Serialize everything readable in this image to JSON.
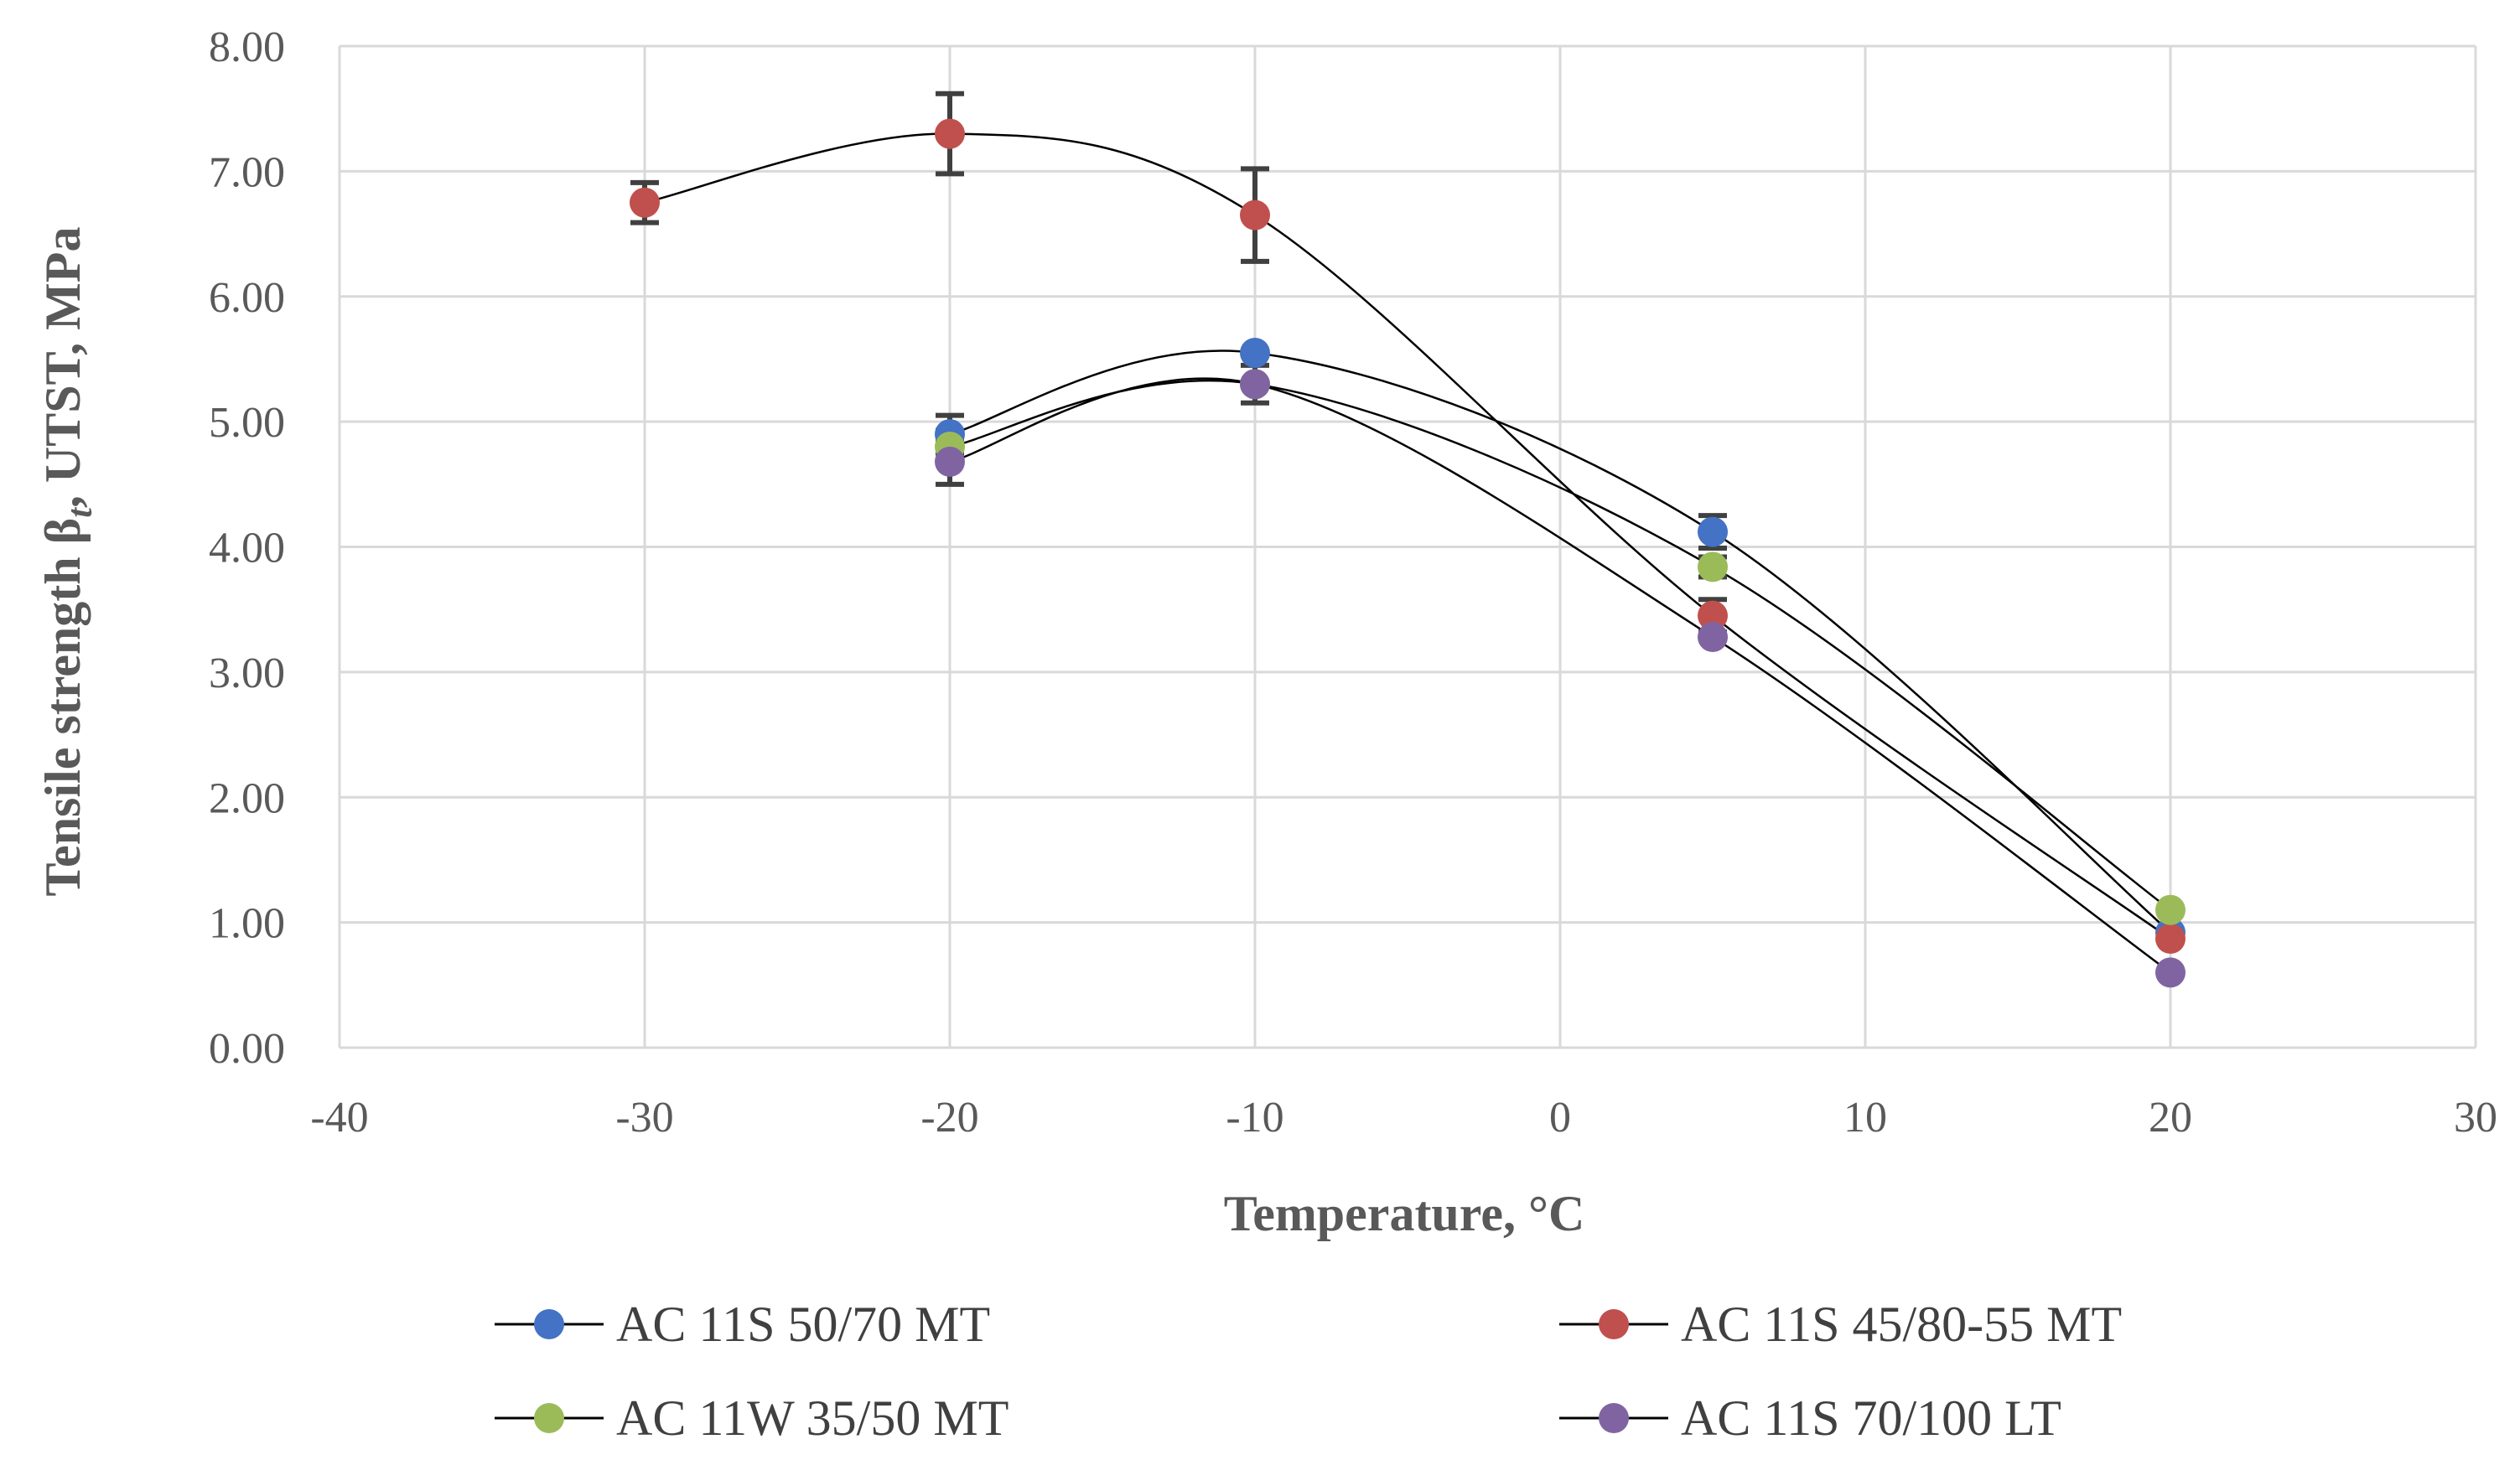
{
  "chart_data": {
    "type": "scatter",
    "title": "",
    "xlabel": "Temperature, °C",
    "ylabel_parts": {
      "before": "Tensile strength β",
      "subscript": "t",
      "after": ", UTST, MPa"
    },
    "xlim": [
      -40,
      30
    ],
    "ylim": [
      0,
      8
    ],
    "x_ticks": [
      -40,
      -30,
      -20,
      -10,
      0,
      10,
      20,
      30
    ],
    "x_tick_labels": [
      "-40",
      "-30",
      "-20",
      "-10",
      "0",
      "10",
      "20",
      "30"
    ],
    "y_ticks": [
      0,
      1,
      2,
      3,
      4,
      5,
      6,
      7,
      8
    ],
    "y_tick_labels": [
      "0.00",
      "1.00",
      "2.00",
      "3.00",
      "4.00",
      "5.00",
      "6.00",
      "7.00",
      "8.00"
    ],
    "grid": true,
    "smooth_lines": true,
    "line_color": "#000000",
    "errorbar_color": "#404040",
    "legend_position": "bottom",
    "series": [
      {
        "name": "AC 11S 50/70 MT",
        "color": "#4472C4",
        "x": [
          -20,
          -10,
          5,
          20
        ],
        "y": [
          4.9,
          5.55,
          4.12,
          0.92
        ],
        "err": [
          0.15,
          0.0,
          0.13,
          0.0
        ]
      },
      {
        "name": "AC 11S 45/80-55 MT",
        "color": "#C0504D",
        "x": [
          -30,
          -20,
          -10,
          5,
          20
        ],
        "y": [
          6.75,
          7.3,
          6.65,
          3.45,
          0.87
        ],
        "err": [
          0.16,
          0.32,
          0.37,
          0.13,
          0.0
        ]
      },
      {
        "name": "AC 11W 35/50 MT",
        "color": "#9BBB59",
        "x": [
          -20,
          -10,
          5,
          20
        ],
        "y": [
          4.8,
          5.3,
          3.84,
          1.1
        ],
        "err": [
          0.13,
          0.0,
          0.08,
          0.0
        ]
      },
      {
        "name": "AC 11S 70/100 LT",
        "color": "#8064A2",
        "x": [
          -20,
          -10,
          5,
          20
        ],
        "y": [
          4.68,
          5.3,
          3.28,
          0.6
        ],
        "err": [
          0.18,
          0.15,
          0.0,
          0.0
        ]
      }
    ]
  }
}
